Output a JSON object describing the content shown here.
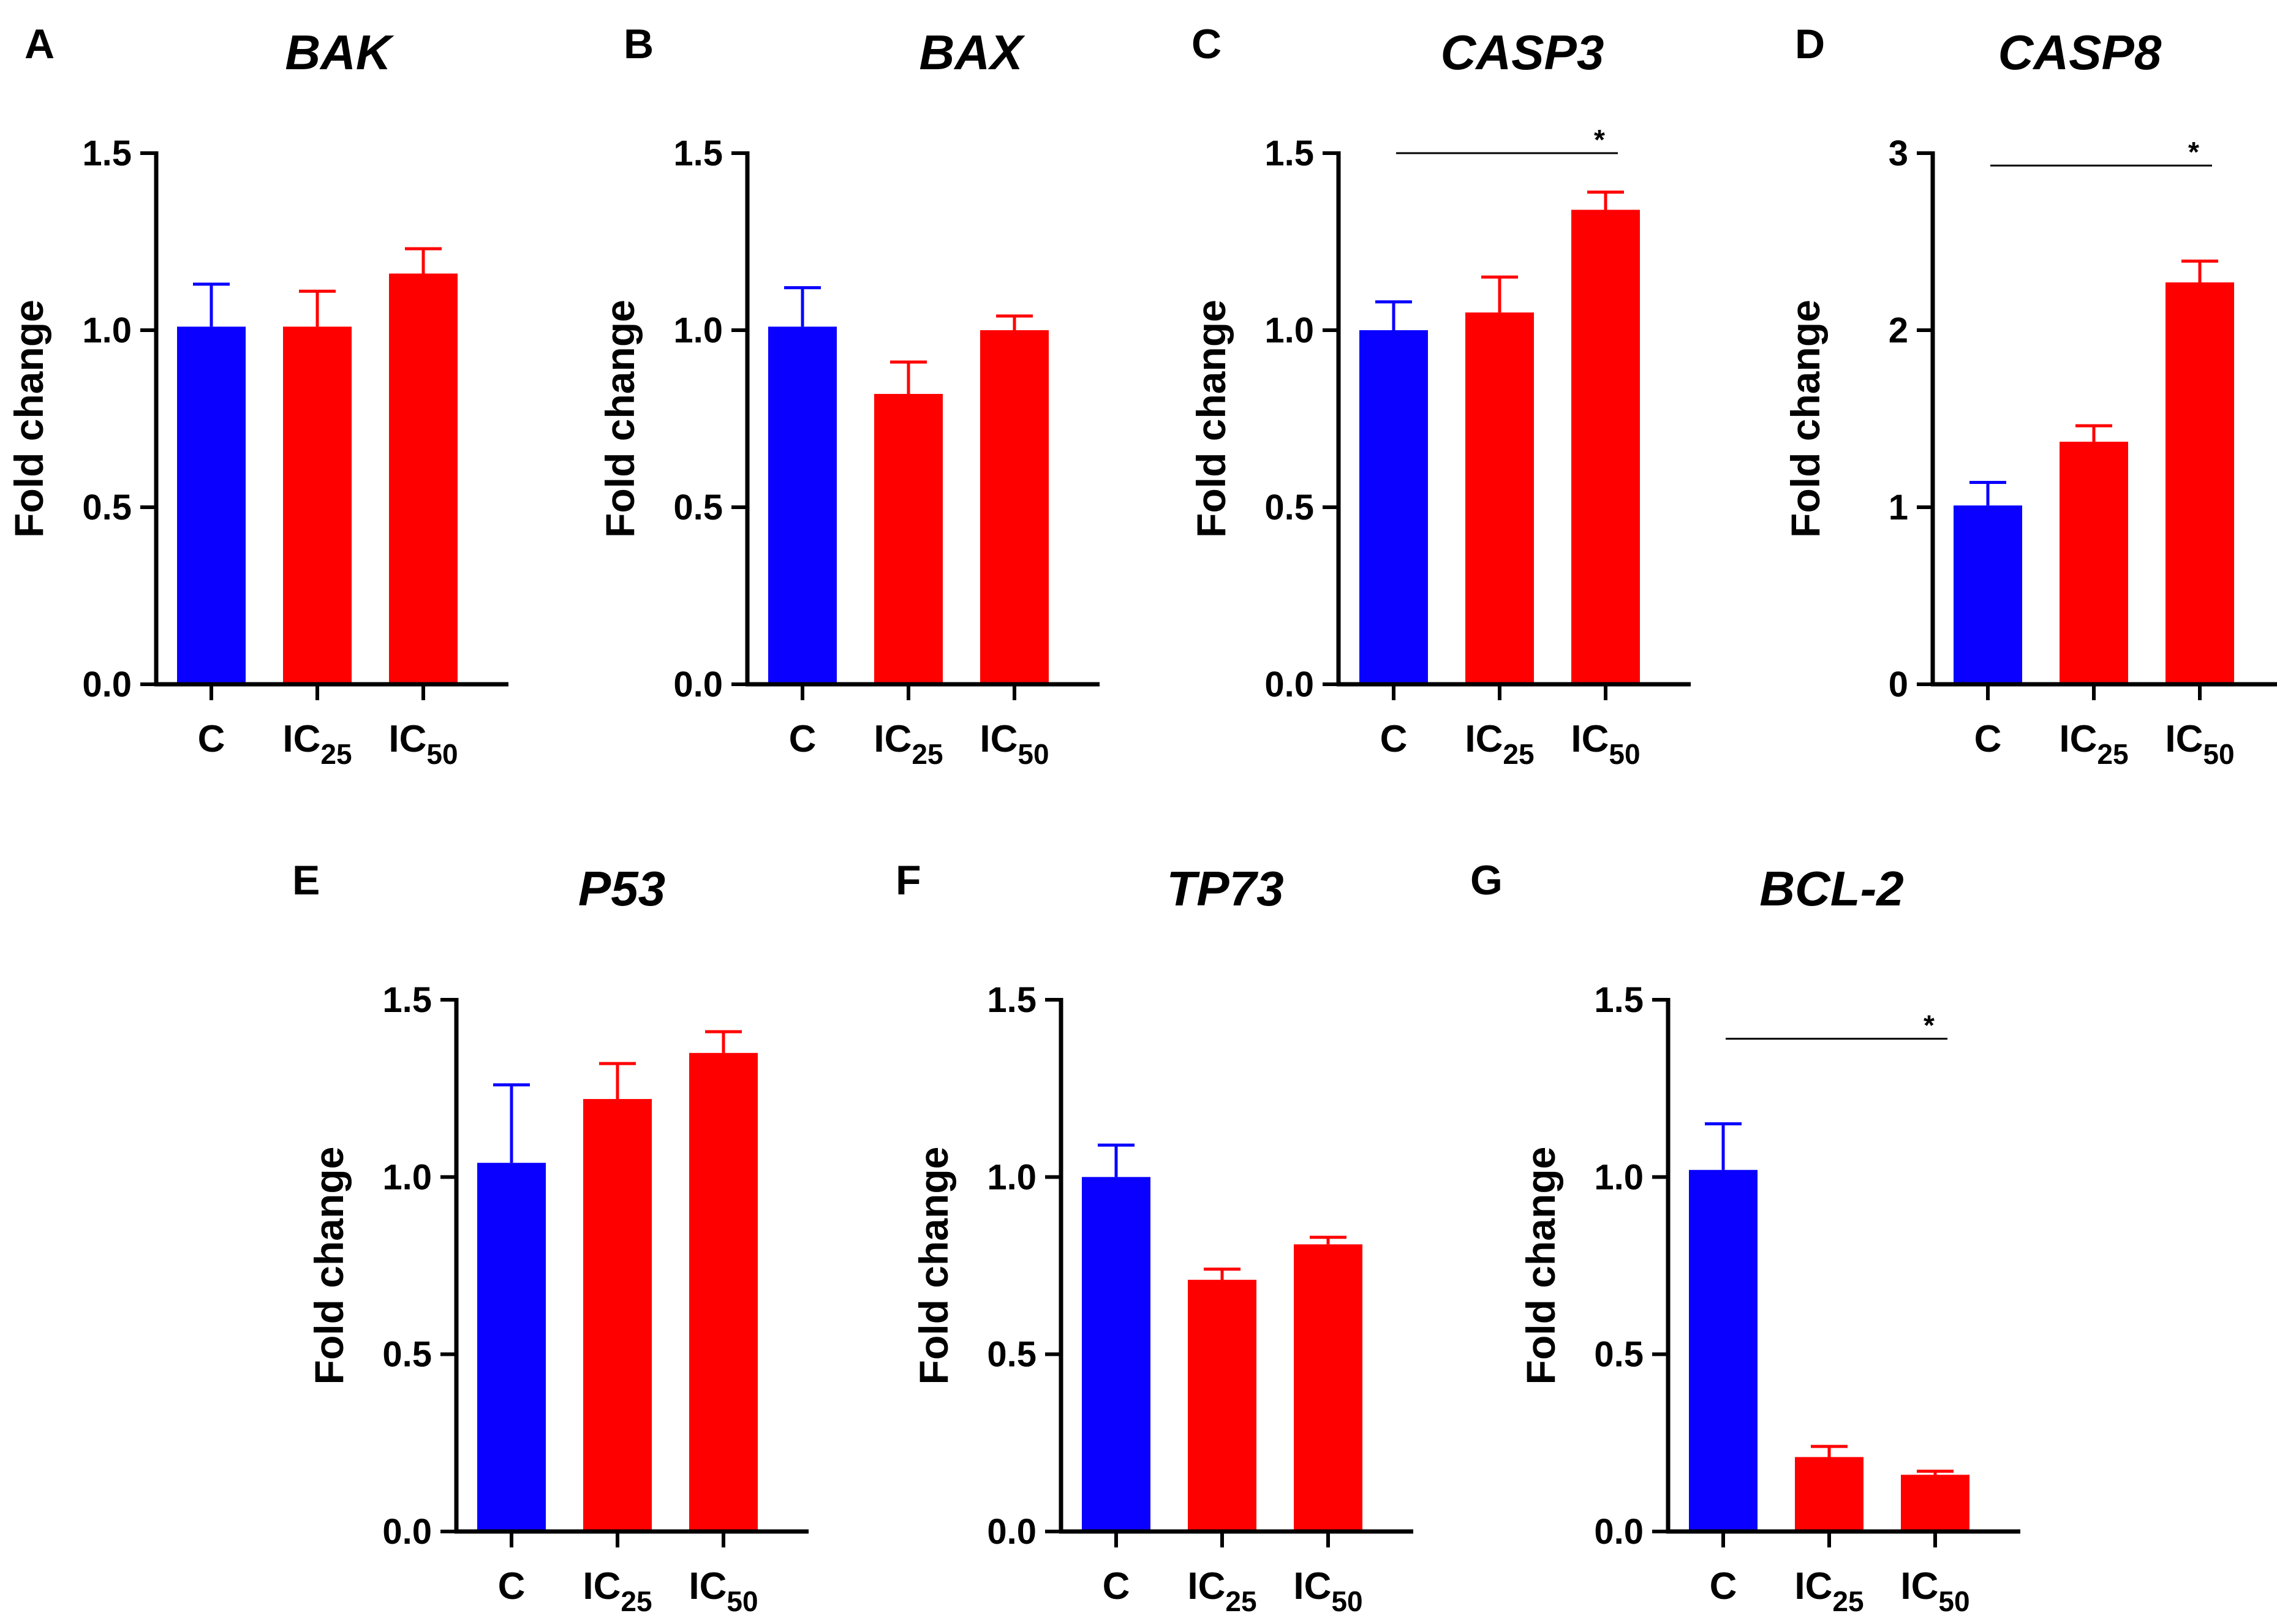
{
  "colors": {
    "control": "#0a00ff",
    "treated": "#ff0000",
    "axis": "#000000"
  },
  "chart_data": [
    {
      "panel": "A",
      "type": "bar",
      "title": "BAK",
      "ylabel": "Fold change",
      "ylim": [
        0,
        1.5
      ],
      "yticks": [
        "0.0",
        "0.5",
        "1.0",
        "1.5"
      ],
      "categories": [
        {
          "main": "C",
          "sub": ""
        },
        {
          "main": "IC",
          "sub": "25"
        },
        {
          "main": "IC",
          "sub": "50"
        }
      ],
      "values": [
        1.01,
        1.01,
        1.16
      ],
      "errors": [
        0.12,
        0.1,
        0.07
      ],
      "significance": null
    },
    {
      "panel": "B",
      "type": "bar",
      "title": "BAX",
      "ylabel": "Fold change",
      "ylim": [
        0,
        1.5
      ],
      "yticks": [
        "0.0",
        "0.5",
        "1.0",
        "1.5"
      ],
      "categories": [
        {
          "main": "C",
          "sub": ""
        },
        {
          "main": "IC",
          "sub": "25"
        },
        {
          "main": "IC",
          "sub": "50"
        }
      ],
      "values": [
        1.01,
        0.82,
        1.0
      ],
      "errors": [
        0.11,
        0.09,
        0.04
      ],
      "significance": null
    },
    {
      "panel": "C",
      "type": "bar",
      "title": "CASP3",
      "ylabel": "Fold change",
      "ylim": [
        0,
        1.5
      ],
      "yticks": [
        "0.0",
        "0.5",
        "1.0",
        "1.5"
      ],
      "categories": [
        {
          "main": "C",
          "sub": ""
        },
        {
          "main": "IC",
          "sub": "25"
        },
        {
          "main": "IC",
          "sub": "50"
        }
      ],
      "values": [
        1.0,
        1.05,
        1.34
      ],
      "errors": [
        0.08,
        0.1,
        0.05
      ],
      "significance": {
        "from": 0,
        "to": 2,
        "level": 1.5,
        "label": "*"
      }
    },
    {
      "panel": "D",
      "type": "bar",
      "title": "CASP8",
      "ylabel": "Fold change",
      "ylim": [
        0,
        3
      ],
      "yticks": [
        "0",
        "1",
        "2",
        "3"
      ],
      "categories": [
        {
          "main": "C",
          "sub": ""
        },
        {
          "main": "IC",
          "sub": "25"
        },
        {
          "main": "IC",
          "sub": "50"
        }
      ],
      "values": [
        1.01,
        1.37,
        2.27
      ],
      "errors": [
        0.13,
        0.09,
        0.12
      ],
      "significance": {
        "from": 0,
        "to": 2,
        "level": 2.93,
        "label": "*"
      }
    },
    {
      "panel": "E",
      "type": "bar",
      "title": "P53",
      "ylabel": "Fold change",
      "ylim": [
        0,
        1.5
      ],
      "yticks": [
        "0.0",
        "0.5",
        "1.0",
        "1.5"
      ],
      "categories": [
        {
          "main": "C",
          "sub": ""
        },
        {
          "main": "IC",
          "sub": "25"
        },
        {
          "main": "IC",
          "sub": "50"
        }
      ],
      "values": [
        1.04,
        1.22,
        1.35
      ],
      "errors": [
        0.22,
        0.1,
        0.06
      ],
      "significance": null
    },
    {
      "panel": "F",
      "type": "bar",
      "title": "TP73",
      "ylabel": "Fold change",
      "ylim": [
        0,
        1.5
      ],
      "yticks": [
        "0.0",
        "0.5",
        "1.0",
        "1.5"
      ],
      "categories": [
        {
          "main": "C",
          "sub": ""
        },
        {
          "main": "IC",
          "sub": "25"
        },
        {
          "main": "IC",
          "sub": "50"
        }
      ],
      "values": [
        1.0,
        0.71,
        0.81
      ],
      "errors": [
        0.09,
        0.03,
        0.02
      ],
      "significance": null
    },
    {
      "panel": "G",
      "type": "bar",
      "title": "BCL-2",
      "ylabel": "Fold change",
      "ylim": [
        0,
        1.5
      ],
      "yticks": [
        "0.0",
        "0.5",
        "1.0",
        "1.5"
      ],
      "categories": [
        {
          "main": "C",
          "sub": ""
        },
        {
          "main": "IC",
          "sub": "25"
        },
        {
          "main": "IC",
          "sub": "50"
        }
      ],
      "values": [
        1.02,
        0.21,
        0.16
      ],
      "errors": [
        0.13,
        0.03,
        0.01
      ],
      "significance": {
        "from": 0,
        "to": 2,
        "level": 1.39,
        "label": "*"
      }
    }
  ]
}
